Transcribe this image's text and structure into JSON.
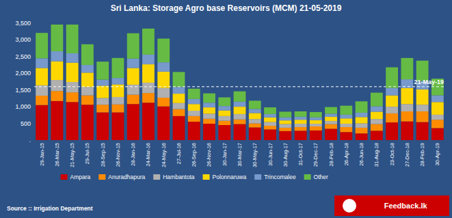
{
  "chart_data": {
    "type": "bar",
    "stacked": true,
    "title": "Sri Lanka: Storage  Agro base Reservoirs (MCM) 21-05-2019",
    "categories": [
      "29-Jan-15",
      "26-Mar-15",
      "21-May-15",
      "29-Jul-15",
      "28-Sep-15",
      "26-Nov-15",
      "28-Jan-16",
      "24-Mar-16",
      "24-May-16",
      "27-Jul-16",
      "26-Sep-16",
      "26-Nov-16",
      "30-Jan-17",
      "30-Mar-17",
      "30-May-17",
      "30-Jun-17",
      "30-Aug-17",
      "31-Oct-17",
      "29-Dec-17",
      "28-Feb-18",
      "26-Apr-18",
      "26-Jun-18",
      "31-Aug-18",
      "23-Oct-18",
      "27-Dec-18",
      "28-Feb-19",
      "30-Apr-19"
    ],
    "series": [
      {
        "name": "Ampara",
        "color": "#cc0000",
        "values": [
          1050,
          1170,
          1140,
          1060,
          830,
          830,
          1080,
          1120,
          1010,
          720,
          550,
          490,
          450,
          480,
          380,
          320,
          270,
          280,
          290,
          340,
          240,
          200,
          280,
          530,
          560,
          540,
          360
        ]
      },
      {
        "name": "Anuradhapura",
        "color": "#ff8c00",
        "values": [
          280,
          300,
          290,
          280,
          230,
          240,
          280,
          290,
          260,
          210,
          170,
          150,
          130,
          140,
          120,
          110,
          100,
          110,
          120,
          140,
          150,
          170,
          200,
          270,
          300,
          320,
          250
        ]
      },
      {
        "name": "Hambantota",
        "color": "#b0b0b0",
        "values": [
          310,
          330,
          310,
          250,
          200,
          220,
          300,
          310,
          290,
          180,
          160,
          150,
          140,
          160,
          130,
          110,
          110,
          100,
          80,
          90,
          100,
          130,
          150,
          200,
          220,
          200,
          150
        ]
      },
      {
        "name": "Polonnaruwa",
        "color": "#ffd700",
        "values": [
          520,
          560,
          580,
          430,
          370,
          380,
          500,
          550,
          490,
          280,
          200,
          190,
          170,
          220,
          180,
          140,
          110,
          120,
          110,
          130,
          160,
          190,
          220,
          340,
          480,
          460,
          380
        ]
      },
      {
        "name": "Trincomalee",
        "color": "#7799cc",
        "values": [
          290,
          300,
          280,
          230,
          180,
          190,
          280,
          290,
          280,
          200,
          150,
          140,
          130,
          150,
          120,
          100,
          90,
          90,
          80,
          90,
          110,
          130,
          160,
          220,
          260,
          250,
          200
        ]
      },
      {
        "name": "Other",
        "color": "#66bb44",
        "values": [
          760,
          800,
          860,
          620,
          540,
          600,
          760,
          780,
          710,
          450,
          310,
          280,
          260,
          310,
          250,
          200,
          170,
          160,
          160,
          200,
          270,
          340,
          410,
          620,
          640,
          610,
          500
        ]
      }
    ],
    "ylim": [
      0,
      3500
    ],
    "yticks": [
      {
        "value": 0,
        "label": "."
      },
      500,
      {
        "value": 1000,
        "label": "1,000"
      },
      {
        "value": 1500,
        "label": "1,500"
      },
      {
        "value": 2000,
        "label": "2,000"
      },
      {
        "value": 2500,
        "label": "2,500"
      },
      {
        "value": 3000,
        "label": "3,000"
      },
      {
        "value": 3500,
        "label": "3,500"
      }
    ],
    "grid": false,
    "legend": "bottom",
    "annotations": [
      {
        "text": "21-May-19",
        "y": 1600,
        "line_style": "dashed"
      },
      {
        "text": "Source :: Irrigation Department"
      },
      {
        "text": "Feedback.lk"
      }
    ]
  }
}
